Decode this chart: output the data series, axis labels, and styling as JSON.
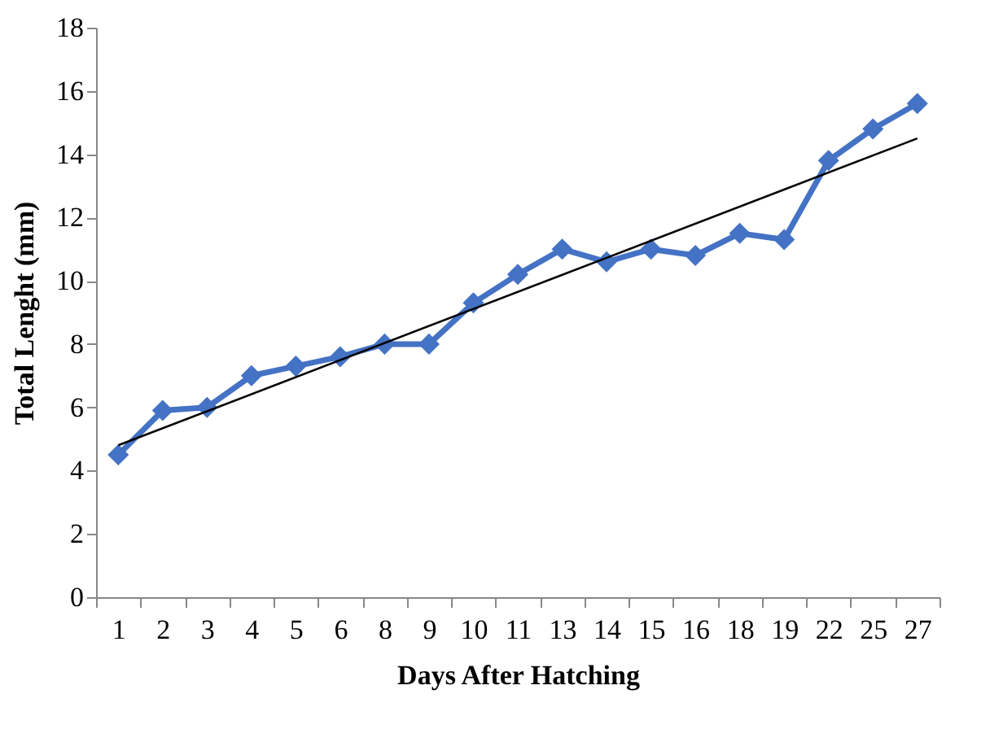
{
  "chart_data": {
    "type": "line",
    "xlabel": "Days After Hatching",
    "ylabel": "Total Lenght (mm)",
    "categories": [
      "1",
      "2",
      "3",
      "4",
      "5",
      "6",
      "8",
      "9",
      "10",
      "11",
      "13",
      "14",
      "15",
      "16",
      "18",
      "19",
      "22",
      "25",
      "27"
    ],
    "series": [
      {
        "color": "#4472c4",
        "marker": "diamond",
        "values": [
          4.5,
          5.9,
          6.0,
          7.0,
          7.3,
          7.6,
          8.0,
          8.0,
          9.3,
          10.2,
          11.0,
          10.6,
          11.0,
          10.8,
          11.5,
          11.3,
          13.8,
          14.8,
          15.6
        ]
      },
      {
        "type": "line",
        "color": "#000000",
        "marker": "none",
        "x": [
          "1",
          "27"
        ],
        "values": [
          4.8,
          14.5
        ]
      }
    ],
    "ylim": [
      0,
      18
    ],
    "yticks": [
      0,
      2,
      4,
      6,
      8,
      10,
      12,
      14,
      16,
      18
    ],
    "grid": false
  }
}
